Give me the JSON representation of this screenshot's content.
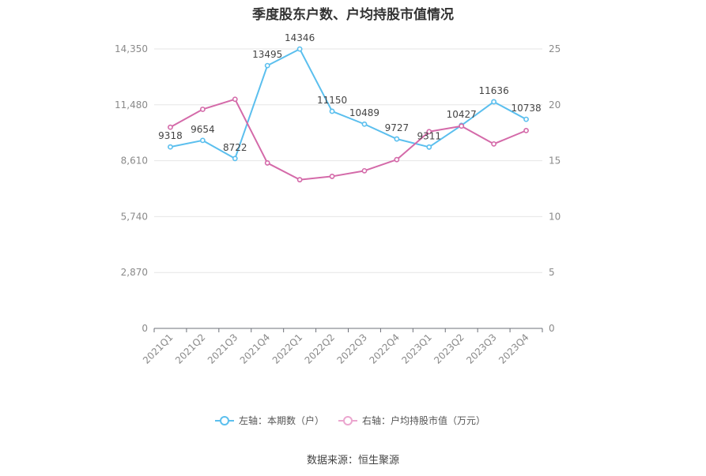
{
  "colors": {
    "series_left": "#5bbfee",
    "series_right": "#d46aa9",
    "legend_right": "#eba6cf",
    "grid": "#e6e6e6",
    "axis": "#6e7079"
  },
  "chart_data": {
    "type": "line",
    "title": "季度股东户数、户均持股市值情况",
    "categories": [
      "2021Q1",
      "2021Q2",
      "2021Q3",
      "2021Q4",
      "2022Q1",
      "2022Q2",
      "2022Q3",
      "2022Q4",
      "2023Q1",
      "2023Q2",
      "2023Q3",
      "2023Q4"
    ],
    "y_left": {
      "min": 0,
      "max": 14350,
      "ticks": [
        0,
        2870,
        5740,
        8610,
        11480,
        14350
      ],
      "tick_labels": [
        "0",
        "2,870",
        "5,740",
        "8,610",
        "11,480",
        "14,350"
      ]
    },
    "y_right": {
      "min": 0,
      "max": 25,
      "ticks": [
        0,
        5,
        10,
        15,
        20,
        25
      ],
      "tick_labels": [
        "0",
        "5",
        "10",
        "15",
        "20",
        "25"
      ]
    },
    "grid": true,
    "legend_position": "bottom",
    "series": [
      {
        "name": "左轴：本期数（户）",
        "axis": "left",
        "values": [
          9318,
          9654,
          8722,
          13495,
          14346,
          11150,
          10489,
          9727,
          9311,
          10427,
          11636,
          10738
        ],
        "data_labels": [
          "9318",
          "9654",
          "8722",
          "13495",
          "14346",
          "11150",
          "10489",
          "9727",
          "9311",
          "10427",
          "11636",
          "10738"
        ]
      },
      {
        "name": "右轴：户均持股市值（万元）",
        "axis": "right",
        "values": [
          18.0,
          19.6,
          20.5,
          14.8,
          13.3,
          13.6,
          14.1,
          15.1,
          17.6,
          18.1,
          16.5,
          17.7
        ]
      }
    ]
  },
  "source": "数据来源：恒生聚源"
}
